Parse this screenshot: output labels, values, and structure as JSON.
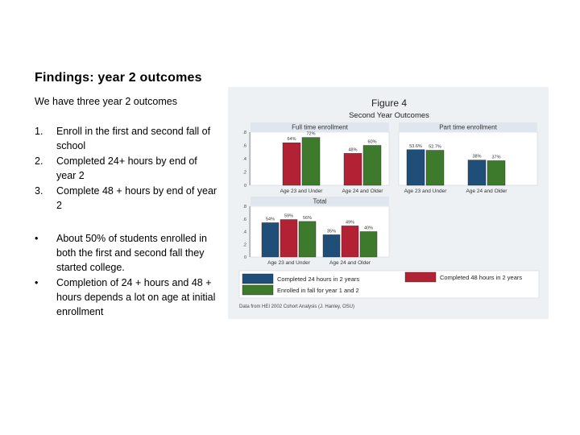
{
  "slide": {
    "title": "Findings: year 2 outcomes",
    "intro": "We have three year 2 outcomes",
    "numbered": [
      {
        "marker": "1.",
        "text": "Enroll in the first and second fall of school"
      },
      {
        "marker": "2.",
        "text": "Completed 24+ hours by end of year 2"
      },
      {
        "marker": "3.",
        "text": "Complete 48 + hours by end of year 2"
      }
    ],
    "bullets": [
      {
        "marker": "•",
        "text": "About 50% of students enrolled in both the first and second fall they started college."
      },
      {
        "marker": "•",
        "text": "Completion of 24 + hours and 48 + hours depends a lot on age at initial enrollment"
      }
    ]
  },
  "figure": {
    "figure_label": "Figure 4",
    "subtitle": "Second Year Outcomes",
    "source": "Data from HEI 2002 Cohort Analysis (J. Hanley, OSU)"
  },
  "chart_data": [
    {
      "type": "bar",
      "title": "Full time enrollment",
      "categories": [
        "Age 23 and Under",
        "Age 24 and Older"
      ],
      "yticks": [
        "0",
        ".2",
        ".4",
        ".6",
        ".8"
      ],
      "ylim": [
        0,
        0.8
      ],
      "series": [
        {
          "name": "Completed 48 hours in 2 years",
          "values": [
            0.64,
            0.48
          ],
          "labels": [
            "64%",
            "48%"
          ]
        },
        {
          "name": "Enrolled in fall for year 1 and 2",
          "values": [
            0.72,
            0.6
          ],
          "labels": [
            "72%",
            "60%"
          ]
        }
      ]
    },
    {
      "type": "bar",
      "title": "Part time enrollment",
      "categories": [
        "Age 23 and Under",
        "Age 24 and Older"
      ],
      "ylim": [
        0,
        0.8
      ],
      "series": [
        {
          "name": "Completed 24 hours in 2 years",
          "values": [
            0.536,
            0.38
          ],
          "labels": [
            "53.6%",
            "38%"
          ]
        },
        {
          "name": "Enrolled in fall for year 1 and 2",
          "values": [
            0.527,
            0.37
          ],
          "labels": [
            "52.7%",
            "37%"
          ]
        }
      ]
    },
    {
      "type": "bar",
      "title": "Total",
      "categories": [
        "Age 23 and Under",
        "Age 24 and Older"
      ],
      "yticks": [
        "0",
        ".2",
        ".4",
        ".6",
        ".8"
      ],
      "ylim": [
        0,
        0.8
      ],
      "series": [
        {
          "name": "Completed 24 hours in 2 years",
          "values": [
            0.54,
            0.35
          ],
          "labels": [
            "54%",
            "35%"
          ]
        },
        {
          "name": "Completed 48 hours in 2 years",
          "values": [
            0.59,
            0.49
          ],
          "labels": [
            "59%",
            "49%"
          ]
        },
        {
          "name": "Enrolled in fall for year 1 and 2",
          "values": [
            0.56,
            0.4
          ],
          "labels": [
            "56%",
            "40%"
          ]
        }
      ]
    }
  ],
  "legend": {
    "items": [
      {
        "label": "Completed 24 hours in 2 years",
        "color": "#1f4e79"
      },
      {
        "label": "Completed 48 hours in 2 years",
        "color": "#b22234"
      },
      {
        "label": "Enrolled in fall for year 1 and 2",
        "color": "#3d7a2c"
      }
    ]
  },
  "colors": {
    "Completed 24 hours in 2 years": "#1f4e79",
    "Completed 48 hours in 2 years": "#b22234",
    "Enrolled in fall for year 1 and 2": "#3d7a2c"
  }
}
